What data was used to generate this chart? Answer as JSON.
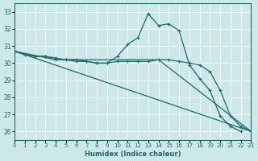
{
  "xlabel": "Humidex (Indice chaleur)",
  "background_color": "#cce8e8",
  "grid_color": "#ffffff",
  "line_color": "#1a6b6b",
  "xlim": [
    0,
    23
  ],
  "ylim": [
    25.5,
    33.5
  ],
  "yticks": [
    26,
    27,
    28,
    29,
    30,
    31,
    32,
    33
  ],
  "xticks": [
    0,
    1,
    2,
    3,
    4,
    5,
    6,
    7,
    8,
    9,
    10,
    11,
    12,
    13,
    14,
    15,
    16,
    17,
    18,
    19,
    20,
    21,
    22,
    23
  ],
  "series": [
    {
      "x": [
        0,
        1,
        2,
        3,
        4,
        5,
        6,
        7,
        8,
        9,
        10,
        11,
        12,
        13,
        14,
        15,
        16,
        17,
        18,
        19,
        20,
        21,
        22
      ],
      "y": [
        30.7,
        30.5,
        30.4,
        30.4,
        30.2,
        30.2,
        30.1,
        30.1,
        30.0,
        30.0,
        30.4,
        31.1,
        31.5,
        32.9,
        32.2,
        32.3,
        31.9,
        29.9,
        29.1,
        28.4,
        26.9,
        26.3,
        26.0
      ],
      "marker": true
    },
    {
      "x": [
        0,
        1,
        2,
        3,
        4,
        5,
        6,
        7,
        8,
        9,
        10,
        11,
        12,
        13,
        14,
        15,
        16,
        17,
        18,
        19,
        20,
        21,
        22,
        23
      ],
      "y": [
        30.7,
        30.5,
        30.4,
        30.4,
        30.3,
        30.2,
        30.2,
        30.1,
        30.0,
        30.0,
        30.1,
        30.1,
        30.1,
        30.1,
        30.2,
        30.2,
        30.1,
        30.0,
        29.9,
        29.5,
        28.4,
        26.9,
        26.3,
        26.0
      ],
      "marker": true
    },
    {
      "x": [
        0,
        4,
        14,
        23
      ],
      "y": [
        30.7,
        30.2,
        30.2,
        26.0
      ],
      "marker": false
    },
    {
      "x": [
        0,
        23
      ],
      "y": [
        30.7,
        26.0
      ],
      "marker": false
    }
  ]
}
